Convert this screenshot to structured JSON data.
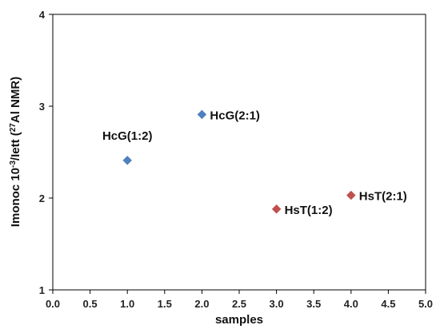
{
  "chart_data": {
    "type": "scatter",
    "xlabel": "samples",
    "ylabel_parts": [
      "Imonoc 10",
      "-3",
      "/Iett (",
      "27",
      "Al NMR)"
    ],
    "xlim": [
      0,
      5
    ],
    "ylim": [
      1,
      4
    ],
    "x_ticks": [
      "0.0",
      "0.5",
      "1.0",
      "1.5",
      "2.0",
      "2.5",
      "3.0",
      "3.5",
      "4.0",
      "4.5",
      "5.0"
    ],
    "y_ticks": [
      "1",
      "2",
      "3",
      "4"
    ],
    "grid": false,
    "legend": "none",
    "series": [
      {
        "color": "#4f81bd",
        "marker": "diamond",
        "points": [
          {
            "x": 1,
            "y": 2.41,
            "label": "HcG(1:2)",
            "label_pos": "above"
          },
          {
            "x": 2,
            "y": 2.91,
            "label": "HcG(2:1)",
            "label_pos": "right"
          }
        ]
      },
      {
        "color": "#c0504d",
        "marker": "diamond",
        "points": [
          {
            "x": 3,
            "y": 1.88,
            "label": "HsT(1:2)",
            "label_pos": "right"
          },
          {
            "x": 4,
            "y": 2.03,
            "label": "HsT(2:1)",
            "label_pos": "right"
          }
        ]
      }
    ]
  }
}
